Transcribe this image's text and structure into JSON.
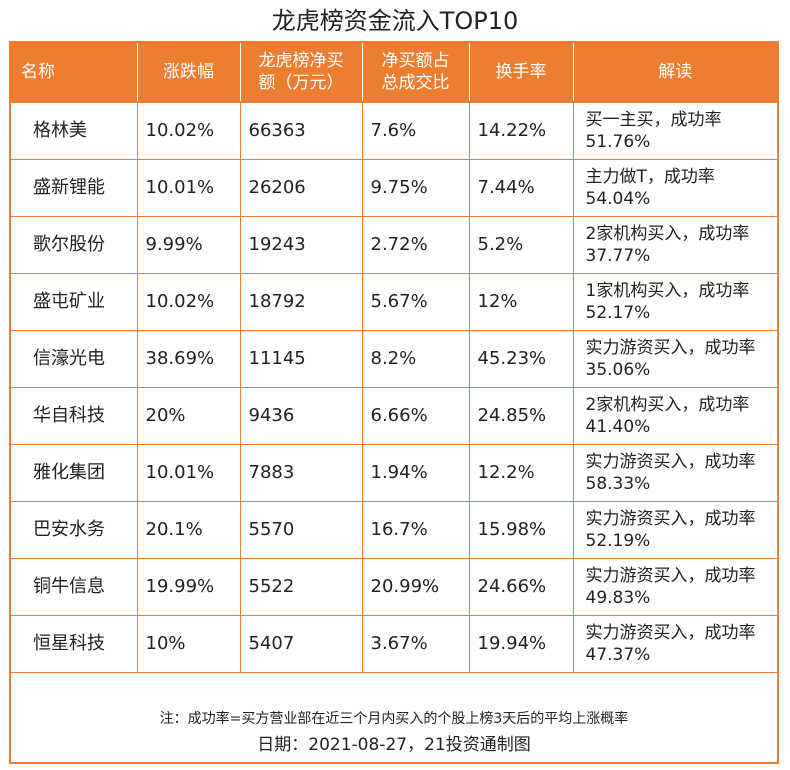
{
  "title": "龙虎榜资金流入TOP10",
  "headers": {
    "name": "名称",
    "change": "涨跌幅",
    "net_buy_line1": "龙虎榜净买",
    "net_buy_line2": "额（万元）",
    "ratio_line1": "净买额占",
    "ratio_line2": "总成交比",
    "turnover": "换手率",
    "note": "解读"
  },
  "rows": [
    {
      "name": "格林美",
      "change": "10.02%",
      "net_buy": "66363",
      "ratio": "7.6%",
      "turnover": "14.22%",
      "note": "买一主买，成功率51.76%"
    },
    {
      "name": "盛新锂能",
      "change": "10.01%",
      "net_buy": "26206",
      "ratio": "9.75%",
      "turnover": "7.44%",
      "note": "主力做T，成功率54.04%"
    },
    {
      "name": "歌尔股份",
      "change": "9.99%",
      "net_buy": "19243",
      "ratio": "2.72%",
      "turnover": "5.2%",
      "note": "2家机构买入，成功率37.77%"
    },
    {
      "name": "盛屯矿业",
      "change": "10.02%",
      "net_buy": "18792",
      "ratio": "5.67%",
      "turnover": "12%",
      "note": "1家机构买入，成功率52.17%"
    },
    {
      "name": "信濠光电",
      "change": "38.69%",
      "net_buy": "11145",
      "ratio": "8.2%",
      "turnover": "45.23%",
      "note": "实力游资买入，成功率35.06%"
    },
    {
      "name": "华自科技",
      "change": "20%",
      "net_buy": "9436",
      "ratio": "6.66%",
      "turnover": "24.85%",
      "note": "2家机构买入，成功率41.40%"
    },
    {
      "name": "雅化集团",
      "change": "10.01%",
      "net_buy": "7883",
      "ratio": "1.94%",
      "turnover": "12.2%",
      "note": "实力游资买入，成功率58.33%"
    },
    {
      "name": "巴安水务",
      "change": "20.1%",
      "net_buy": "5570",
      "ratio": "16.7%",
      "turnover": "15.98%",
      "note": "实力游资买入，成功率52.19%"
    },
    {
      "name": "铜牛信息",
      "change": "19.99%",
      "net_buy": "5522",
      "ratio": "20.99%",
      "turnover": "24.66%",
      "note": "实力游资买入，成功率49.83%"
    },
    {
      "name": "恒星科技",
      "change": "10%",
      "net_buy": "5407",
      "ratio": "3.67%",
      "turnover": "19.94%",
      "note": "实力游资买入，成功率47.37%"
    }
  ],
  "footnote": "注：成功率=买方营业部在近三个月内买入的个股上榜3天后的平均上涨概率",
  "dateline": "日期：2021-08-27，21投资通制图",
  "colors": {
    "accent": "#ed7d31"
  }
}
